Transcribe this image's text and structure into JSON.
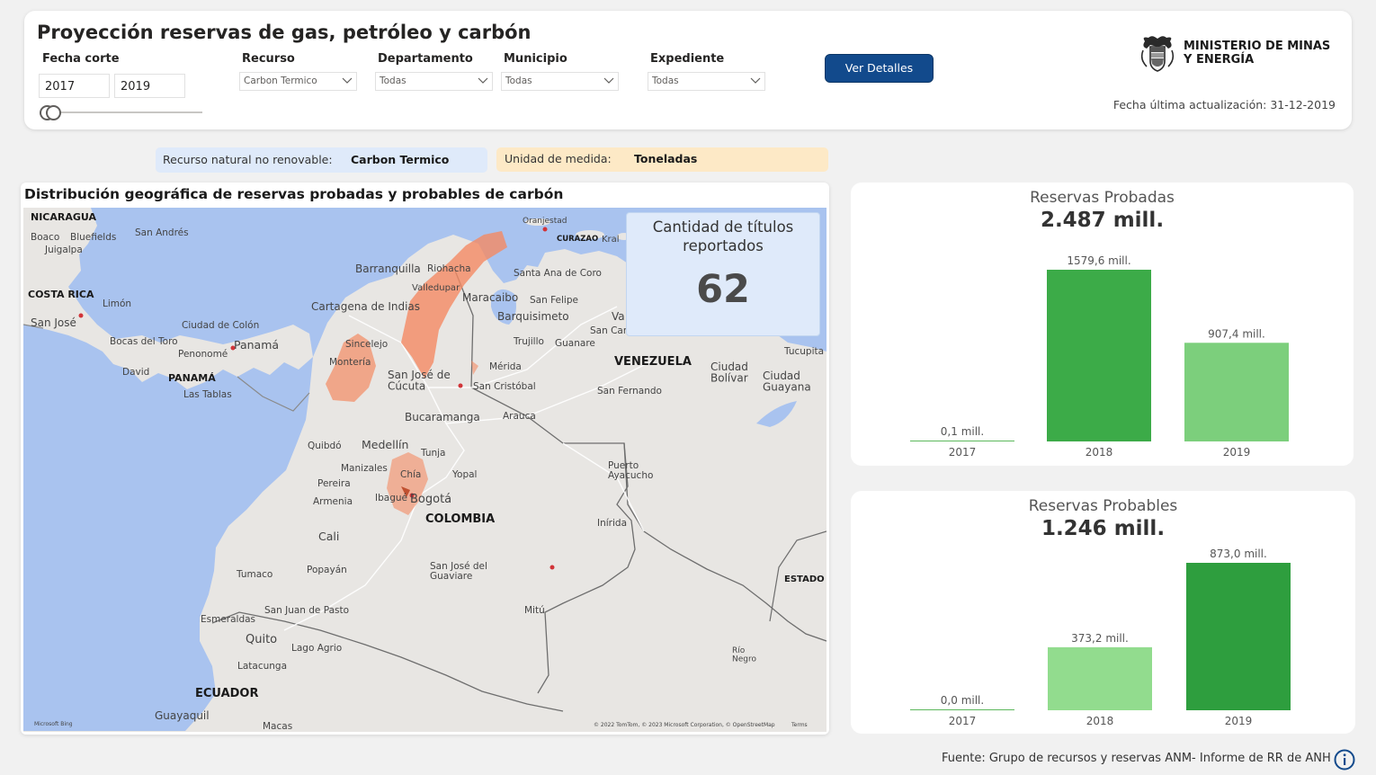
{
  "header": {
    "title": "Proyección reservas de gas, petróleo y carbón",
    "fecha_corte_label": "Fecha corte",
    "date_from": "2017",
    "date_to": "2019",
    "filters": [
      {
        "label": "Recurso",
        "value": "Carbon Termico"
      },
      {
        "label": "Departamento",
        "value": "Todas"
      },
      {
        "label": "Municipio",
        "value": "Todas"
      },
      {
        "label": "Expediente",
        "value": "Todas"
      }
    ],
    "detail_button": "Ver Detalles",
    "ministry_name": "MINISTERIO DE MINAS\nY ENERGÍA",
    "update_label": "Fecha última actualización: 31-12-2019"
  },
  "info": {
    "resource_label": "Recurso natural no renovable:",
    "resource_value": "Carbon Termico",
    "unit_label": "Unidad de medida:",
    "unit_value": "Toneladas"
  },
  "map": {
    "title": "Distribución geográfica de reservas probadas y probables de carbón",
    "labels": {
      "nicaragua": "NICARAGUA",
      "boaco": "Boaco",
      "bluefields": "Bluefields",
      "juigalpa": "Juigalpa",
      "san_andres": "San Andrés",
      "costa_rica": "COSTA RICA",
      "limon": "Limón",
      "san_jose_cr": "San José",
      "ciudad_colon": "Ciudad de Colón",
      "bocas": "Bocas del Toro",
      "panama_city": "Panamá",
      "penonome": "Penonomé",
      "david": "David",
      "panama": "PANAMÁ",
      "las_tablas": "Las Tablas",
      "oranjestad": "Oranjestad",
      "curazao": "CURAZAO",
      "kralendijk": "Kral",
      "barranquilla": "Barranquilla",
      "riohacha": "Riohacha",
      "santa_ana": "Santa Ana de Coro",
      "valledupar": "Valledupar",
      "maracaibo": "Maracaibo",
      "san_felipe": "San Felipe",
      "cartagena": "Cartagena de Indias",
      "barquisimeto": "Barquisimeto",
      "va": "Va",
      "san_carlos": "San Carlos",
      "trujillo": "Trujillo",
      "guanare": "Guanare",
      "sincelejo": "Sincelejo",
      "monteria": "Montería",
      "venezuela": "VENEZUELA",
      "ciudad_bolivar": "Ciudad\nBolívar",
      "ciudad_guayana": "Ciudad\nGuayana",
      "tucupita": "Tucupita",
      "merida": "Mérida",
      "san_jose_cucuta": "San José de\nCúcuta",
      "san_cristobal": "San Cristóbal",
      "san_fernando": "San Fernando",
      "bucaramanga": "Bucaramanga",
      "arauca": "Arauca",
      "quibdo": "Quibdó",
      "medellin": "Medellín",
      "tunja": "Tunja",
      "manizales": "Manizales",
      "yopal": "Yopal",
      "puerto_ayacucho": "Puerto\nAyacucho",
      "pereira": "Pereira",
      "chia": "Chía",
      "armenia": "Armenia",
      "ibague": "Ibagué",
      "bogota": "Bogotá",
      "colombia": "COLOMBIA",
      "inirida": "Inírida",
      "cali": "Cali",
      "popayan": "Popayán",
      "tumaco": "Tumaco",
      "san_jose_guaviare": "San José del\nGuaviare",
      "estado": "ESTADO",
      "esmeraldas": "Esmeraldas",
      "san_juan_pasto": "San Juan de Pasto",
      "mitu": "Mitú",
      "quito": "Quito",
      "lago_agrio": "Lago Agrio",
      "rio_negro": "Río\nNegro",
      "latacunga": "Latacunga",
      "ecuador": "ECUADOR",
      "guayaquil": "Guayaquil",
      "macas": "Macas",
      "bing": "Microsoft Bing",
      "copyright": "© 2022 TomTom, © 2023 Microsoft Corporation, © OpenStreetMap",
      "terms": "Terms"
    },
    "titles_label": "Cantidad de títulos reportados",
    "titles_value": "62",
    "land_color": "#e8e6e3",
    "water_color": "#a9c3ef",
    "reserve_color": "#f48a63"
  },
  "probadas": {
    "title": "Reservas Probadas",
    "total": "2.487 mill.",
    "chart_data": {
      "type": "bar",
      "categories": [
        "2017",
        "2018",
        "2019"
      ],
      "values": [
        0.1,
        1579.6,
        907.4
      ],
      "labels": [
        "0,1 mill.",
        "1579,6 mill.",
        "907,4 mill."
      ],
      "colors": [
        "#5cb85c",
        "#3cab48",
        "#7ccf7c"
      ]
    }
  },
  "probables": {
    "title": "Reservas Probables",
    "total": "1.246 mill.",
    "chart_data": {
      "type": "bar",
      "categories": [
        "2017",
        "2018",
        "2019"
      ],
      "values": [
        0.0,
        373.2,
        873.0
      ],
      "labels": [
        "0,0 mill.",
        "373,2 mill.",
        "873,0 mill."
      ],
      "colors": [
        "#5cb85c",
        "#92dc8e",
        "#2e9e3e"
      ]
    }
  },
  "footer": {
    "source": "Fuente: Grupo de recursos y reservas ANM- Informe de RR de ANH"
  }
}
